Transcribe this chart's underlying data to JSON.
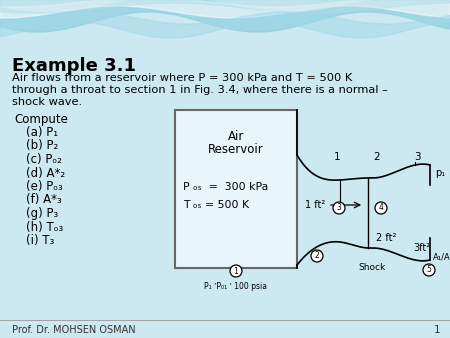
{
  "title_text": "Example 3.1",
  "line1": "Air flows from a reservoir where P = 300 kPa and T = 500 K",
  "line2": "through a throat to section 1 in Fig. 3.4, where there is a normal –",
  "line3": "shock wave.",
  "compute_label": "Compute",
  "items": [
    "(a) P₁",
    "(b) P₂",
    "(c) Pₒ₂",
    "(d) A*₂",
    "(e) Pₒ₃",
    "(f) A*₃",
    "(g) P₃",
    "(h) Tₒ₃",
    "(i) T₃"
  ],
  "reservoir_label1": "Air",
  "reservoir_label2": "Reservoir",
  "p_label": "P ₒₛ  =  300 kPa",
  "t_label": "T ₒₛ = 500 K",
  "footer": "Prof. Dr. MOHSEN OSMAN",
  "page_num": "1",
  "bottom_label": "P₁ ʹPₒₛ ʹ 100 psia",
  "bg_main": "#cce8f0",
  "wave_colors": [
    "#a8d8e8",
    "#8ecfdf",
    "#b8e4ef"
  ],
  "box_face": "#e8f5fb",
  "box_edge": "#666666"
}
